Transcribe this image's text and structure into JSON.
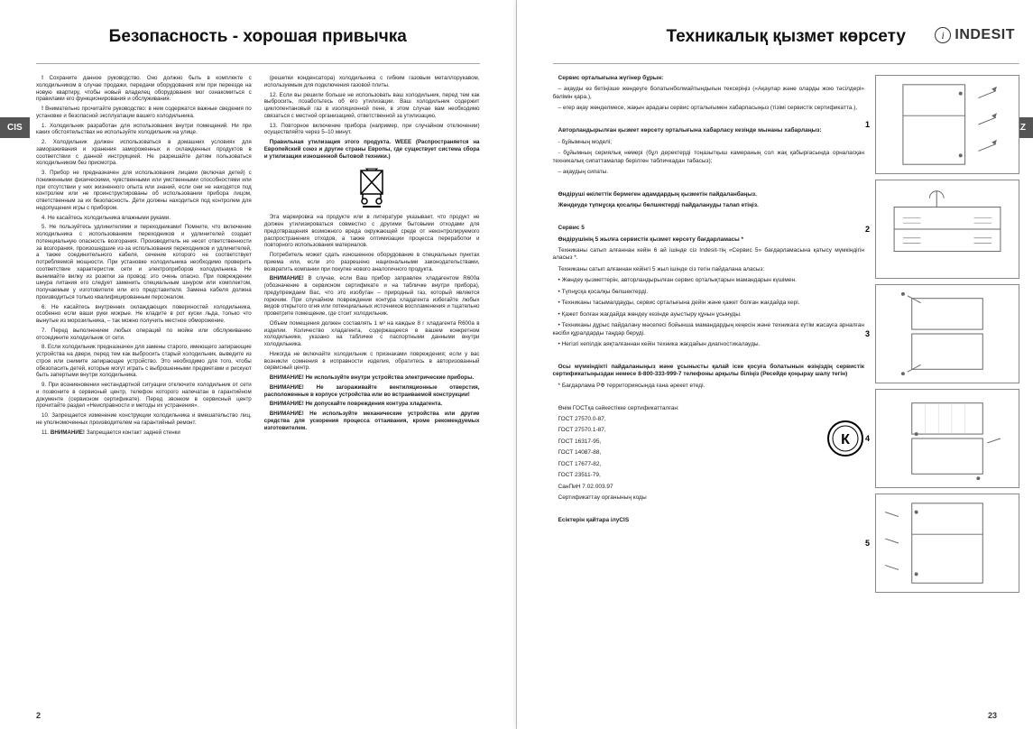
{
  "left": {
    "title": "Безопасность - хорошая привычка",
    "tab": "CIS",
    "page_num": "2",
    "col1": [
      {
        "b": "!",
        "t": " Сохраните данное руководство. Оно должно быть в комплекте с холодильником в случае продажи, передачи оборудования или при переезде на новую квартиру, чтобы новый владелец оборудования мог ознакомиться с правилами его функционирования и обслуживания."
      },
      {
        "b": "!",
        "t": " Внимательно прочитайте руководство: в нем содержатся важные сведения по установке и безопасной эксплуатации вашего холодильника."
      },
      {
        "t": "1. Холодильник разработан для использования внутри помещений. Ни при каких обстоятельствах не используйте холодильник на улице."
      },
      {
        "t": "2. Холодильник должен использоваться в домашних условиях для замораживания и хранения замороженных и охлажденных продуктов в соответствии с данной инструкцией. Не разрешайте детям пользоваться холодильником без присмотра."
      },
      {
        "t": "3. Прибор не предназначен для использования лицами (включая детей) с пониженными физическими, чувственными или умственными способностями или при отсутствии у них жизненного опыта или знаний, если они не находятся под контролем или не проинструктированы об использовании прибора лицом, ответственным за их безопасность. Дети должны находиться под контролем для недопущения игры с прибором."
      },
      {
        "t": "4. Не касайтесь холодильника влажными руками."
      },
      {
        "t": "5. Не пользуйтесь удлинителями и переходниками! Помните, что включение холодильника с использованием переходников и удлинителей создает потенциальную опасность возгорания. Производитель не несет ответственности за возгорания, произошедшие из-за использования переходников и удлинителей, а также соединительного кабеля, сечение которого не соответствует потребляемой мощности. При установке холодильника необходимо проверить соответствие характеристик сети и электроприборов холодильника. Не вынимайте вилку из розетки за провод: это очень опасно. При повреждении шнура питания его следует заменить специальным шнуром или комплектом, получаемым у изготовителя или его представителя. Замена кабеля должна производиться только квалифицированным персоналом."
      },
      {
        "t": "6. Не касайтесь внутренних охлаждающих поверхностей холодильника, особенно если ваши руки мокрые. Не кладите в рот куски льда, только что вынутые из морозильника, – так можно получить местное обморожение."
      },
      {
        "t": "7. Перед выполнением любых операций по мойке или обслуживанию отсоедините холодильник от сети."
      },
      {
        "t": "8. Если холодильник предназначен для замены старого, имеющего запирающие устройства на двери, перед тем как выбросить старый холодильник, выведите из строя или снимите запирающее устройство. Это необходимо для того, чтобы обезопасить детей, которые могут играть с выброшенными предметами и рискуют быть запертыми внутри холодильника."
      },
      {
        "t": "9. При возникновении нестандартной ситуации отключите холодильник от сети и позвоните в сервисный центр, телефон которого напечатан в гарантийном документе (сервисном сертификате). Перед звонком в сервисный центр прочитайте раздел «Неисправности и методы их устранения»."
      },
      {
        "t": "10. Запрещается изменение конструкции холодильника и вмешательство лиц, не уполномоченных производителем на гарантийный ремонт."
      },
      {
        "t": "11. ",
        "b2": "ВНИМАНИЕ!",
        "t2": " Запрещается контакт задней стенки"
      }
    ],
    "col2": [
      {
        "t": "(решетки конденсатора) холодильника с гибким газовым металлорукавом, используемым для подключения газовой плиты."
      },
      {
        "t": "12. Если вы решили больше не использовать ваш холодильник, перед тем как выбросить, позаботьтесь об его утилизации. Ваш холодильник содержит циклопентановый газ в изоляционной пене, в этом случае вам необходимо связаться с местной организацией, ответственной за утилизацию."
      },
      {
        "t": "13. Повторное включение прибора (например, при случайном отключении) осуществляйте через 5–10 минут."
      },
      {
        "b": "Правильная утилизация этого продукта. WEEE (Распространяется на Европейский союз и другие страны Европы, где существует система сбора и утилизации изношенной бытовой техники.)",
        "t": ""
      },
      {
        "weee": true
      },
      {
        "t": "Эта маркировка на продукте или в литературе указывает, что продукт не должен утилизироваться совместно с другими бытовыми отходами для предотвращения возможного вреда окружающей среде от неконтролируемого распространения отходов, а также оптимизации процесса переработки и повторного использования материалов."
      },
      {
        "t": "Потребитель может сдать изношенное оборудование в специальных пунктах приема или, если это разрешено национальными законодательствами, возвратить компании при покупке нового аналогичного продукта."
      },
      {
        "b": "ВНИМАНИЕ!",
        "t": " В случае, если Ваш прибор заправлен хладагентом R600a (обозначение в сервисном сертификате и на табличке внутри прибора), предупреждаем Вас, что это изобутан – природный газ, который является горючим. При случайном повреждении контура хладагента избегайте любых видов открытого огня или потенциальных источников воспламенения и тщательно проветрите помещение, где стоит холодильник."
      },
      {
        "t": "Объем помещения должен составлять 1 м³ на каждые 8 г хладагента R600a в изделии. Количество хладагента, содержащееся в вашем конкретном холодильнике, указано на табличке с паспортными данными внутри холодильника."
      },
      {
        "t": "Никогда не включайте холодильник с признаками повреждения; если у вас возникли сомнения в исправности изделия, обратитесь в авторизованный сервисный центр."
      },
      {
        "b": "ВНИМАНИЕ! Не используйте внутри устройства электрические приборы.",
        "t": ""
      },
      {
        "b": "ВНИМАНИЕ! Не загораживайте вентиляционные отверстия, расположенные в корпусе устройства или во встраиваемой конструкции!",
        "t": ""
      },
      {
        "b": "ВНИМАНИЕ! Не допускайте повреждения контура хладагента.",
        "t": ""
      },
      {
        "b": "ВНИМАНИЕ! Не используйте механические устройства или другие средства для ускорения процесса оттаивания, кроме рекомендуемых изготовителем.",
        "t": ""
      }
    ]
  },
  "right": {
    "title": "Техникалық қызмет көрсету",
    "tab": "KZ",
    "page_num": "23",
    "brand": "INDESIT",
    "paras": [
      {
        "b": "Сервис орталығына жүгінер бұрын:",
        "t": ""
      },
      {
        "t": "– ақауды өз бетіңізше жөндеуге болатынболмайтындығын тексеріңіз («Ақаулар және оларды жою тәсілдері» бөлімін қара.),"
      },
      {
        "t": "– егер ақау жөнделмесе, жақын арадағы сервис орталығымен хабарласыңыз (тізімі сервистік сертификатта.),"
      },
      {
        "t": " "
      },
      {
        "b": "Авторландырылған қызмет көрсету орталығына хабарласу кезінде мынаны хабарлаңыз:",
        "t": ""
      },
      {
        "t": "- бұйымның моделі;"
      },
      {
        "t": "- бұйымның сериялық нөмері (бұл деректерді тоңазытқыш камераның сол жақ қабырғасында орналасқан техникалық сипаттамалар берілген табличкадан табасыз);"
      },
      {
        "t": "– ақаудың сипаты."
      },
      {
        "t": " "
      },
      {
        "b": "Өндіруші өкілеттік бермеген адамдардың қызметін пайдаланбаңыз.",
        "t": ""
      },
      {
        "b": "Жөндеуде түпнұсқа қосалқы бөлшектерді пайдалануды талап етіңіз.",
        "t": ""
      },
      {
        "t": " "
      },
      {
        "b": "Сервис 5",
        "t": ""
      },
      {
        "b": "Өндірушінің 5 жылға сервистік қызмет көрсету бағдарламасы *",
        "t": ""
      },
      {
        "t": "Техниканы сатып алғаннан кейін 6 ай ішінде сіз Indesit-тің «Сервис 5» бағдарламасына қатысу мүмкіндігін аласыз *."
      },
      {
        "t": "Техниканы сатып алғаннан кейінгі 5 жыл ішінде сіз тегін пайдалана аласыз:"
      },
      {
        "t": "• Жөндеу қызметтерін, авторландырылған сервис орталықтарын мамандарын күшімен."
      },
      {
        "t": "• Түпнұсқа қосалқы бөлшектерді."
      },
      {
        "t": "• Техниканы тасымалдауды, сервис орталығына дейін және қажет болған жағдайда кері."
      },
      {
        "t": "• Қажет болған жағдайда жөндеу кезінде ауыстыру құнын ұсынуды."
      },
      {
        "t": "• Техниканы дұрыс пайдалану мәселесі бойынша мамандардың кеңесін және техникаға күтім жасауға арналған кәсіби құралдарды таңдар беруді."
      },
      {
        "t": "• Негізгі кепілдік аяқталғаннан кейін техника жағдайын диагностикалауды."
      },
      {
        "t": " "
      },
      {
        "b": "Осы мүмкіндікті пайдаланыңыз және ұсынысты қалай іске қосуға болатынын өзіңіздің сервистік сертификатыңыздан немесе 8-800-333-999-7 телефоны арқылы біліңіз (Ресейде қоңырау шалу тегін)",
        "t": ""
      },
      {
        "t": "* Бағдарлама РФ территориясында ғана әрекет етеді."
      },
      {
        "t": " "
      },
      {
        "t": "Өнім ГОСТқа сәйкестікке сертификатталған:"
      },
      {
        "t": "ГОСТ 27570.0-87,"
      },
      {
        "t": "ГОСТ 27570.1-87,"
      },
      {
        "t": "ГОСТ 16317-95,"
      },
      {
        "t": "ГОСТ 14087-88,"
      },
      {
        "t": "ГОСТ 17677-82,"
      },
      {
        "t": "ГОСТ 23511-79,"
      },
      {
        "t": "СанПиН 7.02.003.97"
      },
      {
        "t": "Сертификаттау органының коды"
      },
      {
        "t": " "
      },
      {
        "b": "Есіктерін қайтара ілуCIS",
        "t": ""
      }
    ],
    "illus_numbers": [
      "1",
      "2",
      "3",
      "4",
      "5"
    ]
  }
}
